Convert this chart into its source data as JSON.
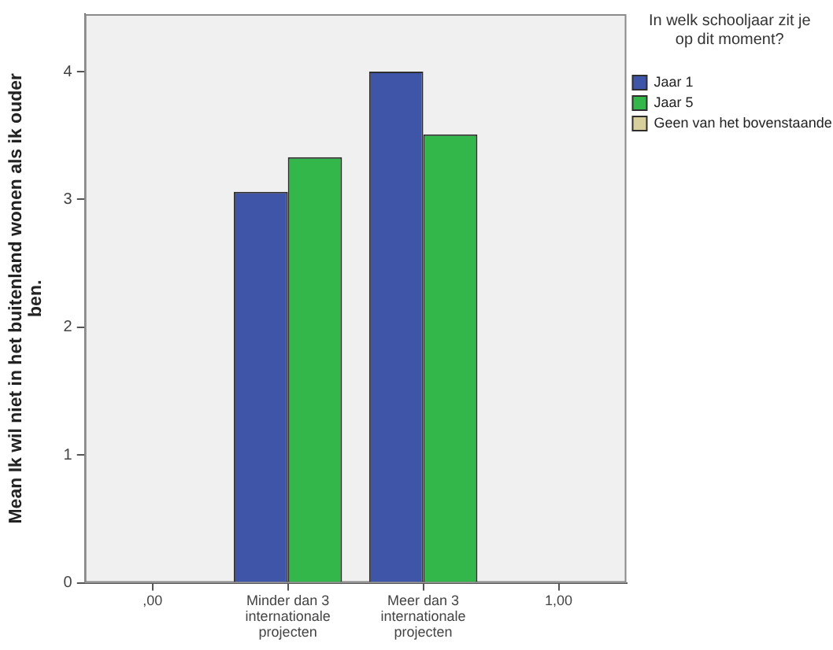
{
  "chart_data": {
    "type": "bar",
    "categories": [
      ",00",
      "Minder dan 3 internationale projecten",
      "Meer dan 3 internationale projecten",
      "1,00"
    ],
    "series": [
      {
        "name": "Jaar 1",
        "color": "#3f55a7",
        "values": [
          null,
          3.06,
          4.0,
          null
        ]
      },
      {
        "name": "Jaar 5",
        "color": "#33b74a",
        "values": [
          null,
          3.33,
          3.51,
          null
        ]
      },
      {
        "name": "Geen van het bovenstaande",
        "color": "#d8d09c",
        "values": [
          null,
          null,
          null,
          null
        ]
      }
    ],
    "ylabel": "Mean Ik wil niet in het buitenland wonen als ik ouder ben.",
    "legend_title": "In welk schooljaar zit je op dit moment?",
    "legend": "top right",
    "ylim": [
      0,
      4.45
    ],
    "yticks": [
      0,
      1,
      2,
      3,
      4
    ]
  }
}
